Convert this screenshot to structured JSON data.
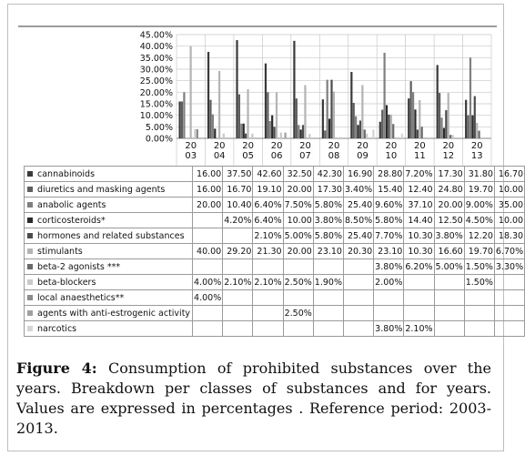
{
  "chart_data": {
    "type": "bar",
    "categories": [
      "2003",
      "2004",
      "2005",
      "2006",
      "2007",
      "2008",
      "2009",
      "2010",
      "2011",
      "2012",
      "2013"
    ],
    "category_lines": [
      [
        "20",
        "03"
      ],
      [
        "20",
        "04"
      ],
      [
        "20",
        "05"
      ],
      [
        "20",
        "06"
      ],
      [
        "20",
        "07"
      ],
      [
        "20",
        "08"
      ],
      [
        "20",
        "09"
      ],
      [
        "20",
        "10"
      ],
      [
        "20",
        "11"
      ],
      [
        "20",
        "12"
      ],
      [
        "20",
        "13"
      ]
    ],
    "ylim": [
      0,
      45
    ],
    "yticks": [
      "0.00%",
      "5.00%",
      "10.00%",
      "15.00%",
      "20.00%",
      "25.00%",
      "30.00%",
      "35.00%",
      "40.00%",
      "45.00%"
    ],
    "grid": true,
    "series": [
      {
        "name": "cannabinoids",
        "color": "#3a3a3a",
        "values": [
          16.0,
          37.5,
          42.6,
          32.5,
          42.3,
          16.9,
          28.8,
          7.2,
          17.3,
          31.8,
          16.7
        ],
        "labels": [
          "16.00",
          "37.50",
          "42.60",
          "32.50",
          "42.30",
          "16.90",
          "28.80",
          "7.20%",
          "17.30",
          "31.80",
          "16.70"
        ]
      },
      {
        "name": "diuretics and masking agents",
        "color": "#5e5e5e",
        "values": [
          16.0,
          16.7,
          19.1,
          20.0,
          17.3,
          3.4,
          15.4,
          12.4,
          24.8,
          19.7,
          10.0
        ],
        "labels": [
          "16.00",
          "16.70",
          "19.10",
          "20.00",
          "17.30",
          "3.40%",
          "15.40",
          "12.40",
          "24.80",
          "19.70",
          "10.00"
        ]
      },
      {
        "name": "anabolic agents",
        "color": "#7f7f7f",
        "values": [
          20.0,
          10.4,
          6.4,
          7.5,
          5.8,
          25.4,
          9.6,
          37.1,
          20.0,
          9.0,
          35.0
        ],
        "labels": [
          "20.00",
          "10.40",
          "6.40%",
          "7.50%",
          "5.80%",
          "25.40",
          "9.60%",
          "37.10",
          "20.00",
          "9.00%",
          "35.00"
        ]
      },
      {
        "name": "corticosteroids*",
        "color": "#2a2a2a",
        "values": [
          null,
          4.2,
          6.4,
          10.0,
          3.8,
          8.5,
          5.8,
          14.4,
          12.5,
          4.5,
          10.0
        ],
        "labels": [
          "",
          "4.20%",
          "6.40%",
          "10.00",
          "3.80%",
          "8.50%",
          "5.80%",
          "14.40",
          "12.50",
          "4.50%",
          "10.00"
        ]
      },
      {
        "name": "hormones and related substances",
        "color": "#4c4c4c",
        "values": [
          null,
          null,
          2.1,
          5.0,
          5.8,
          25.4,
          7.7,
          10.3,
          3.8,
          12.2,
          18.3
        ],
        "labels": [
          "",
          "",
          "2.10%",
          "5.00%",
          "5.80%",
          "25.40",
          "7.70%",
          "10.30",
          "3.80%",
          "12.20",
          "18.30"
        ]
      },
      {
        "name": "stimulants",
        "color": "#b4b4b4",
        "values": [
          40.0,
          29.2,
          21.3,
          20.0,
          23.1,
          20.3,
          23.1,
          10.3,
          16.6,
          19.7,
          6.7
        ],
        "labels": [
          "40.00",
          "29.20",
          "21.30",
          "20.00",
          "23.10",
          "20.30",
          "23.10",
          "10.30",
          "16.60",
          "19.70",
          "6.70%"
        ]
      },
      {
        "name": "beta-2 agonists ***",
        "color": "#6a6a6a",
        "values": [
          null,
          null,
          null,
          null,
          null,
          null,
          3.8,
          6.2,
          5.0,
          1.5,
          3.3
        ],
        "labels": [
          "",
          "",
          "",
          "",
          "",
          "",
          "3.80%",
          "6.20%",
          "5.00%",
          "1.50%",
          "3.30%"
        ]
      },
      {
        "name": "beta-blockers",
        "color": "#c9c9c9",
        "values": [
          4.0,
          2.1,
          2.1,
          2.5,
          1.9,
          null,
          2.0,
          null,
          null,
          1.5,
          null
        ],
        "labels": [
          "4.00%",
          "2.10%",
          "2.10%",
          "2.50%",
          "1.90%",
          "",
          "2.00%",
          "",
          "",
          "1.50%",
          ""
        ]
      },
      {
        "name": "local anaesthetics**",
        "color": "#8c8c8c",
        "values": [
          4.0,
          null,
          null,
          null,
          null,
          null,
          null,
          null,
          null,
          null,
          null
        ],
        "labels": [
          "4.00%",
          "",
          "",
          "",
          "",
          "",
          "",
          "",
          "",
          "",
          ""
        ]
      },
      {
        "name": "agents with anti-estrogenic activity",
        "color": "#a0a0a0",
        "values": [
          null,
          null,
          null,
          2.5,
          null,
          null,
          null,
          null,
          null,
          null,
          null
        ],
        "labels": [
          "",
          "",
          "",
          "2.50%",
          "",
          "",
          "",
          "",
          "",
          "",
          ""
        ]
      },
      {
        "name": "narcotics",
        "color": "#d5d5d5",
        "values": [
          null,
          null,
          null,
          null,
          null,
          null,
          3.8,
          2.1,
          null,
          null,
          null
        ],
        "labels": [
          "",
          "",
          "",
          "",
          "",
          "",
          "3.80%",
          "2.10%",
          "",
          "",
          ""
        ]
      }
    ]
  },
  "caption": {
    "label": "Figure 4:",
    "text": " Consumption of prohibited substances over the years. Breakdown per classes of substances and for years. Values  are expressed in percentages . Reference period: 2003-2013."
  }
}
